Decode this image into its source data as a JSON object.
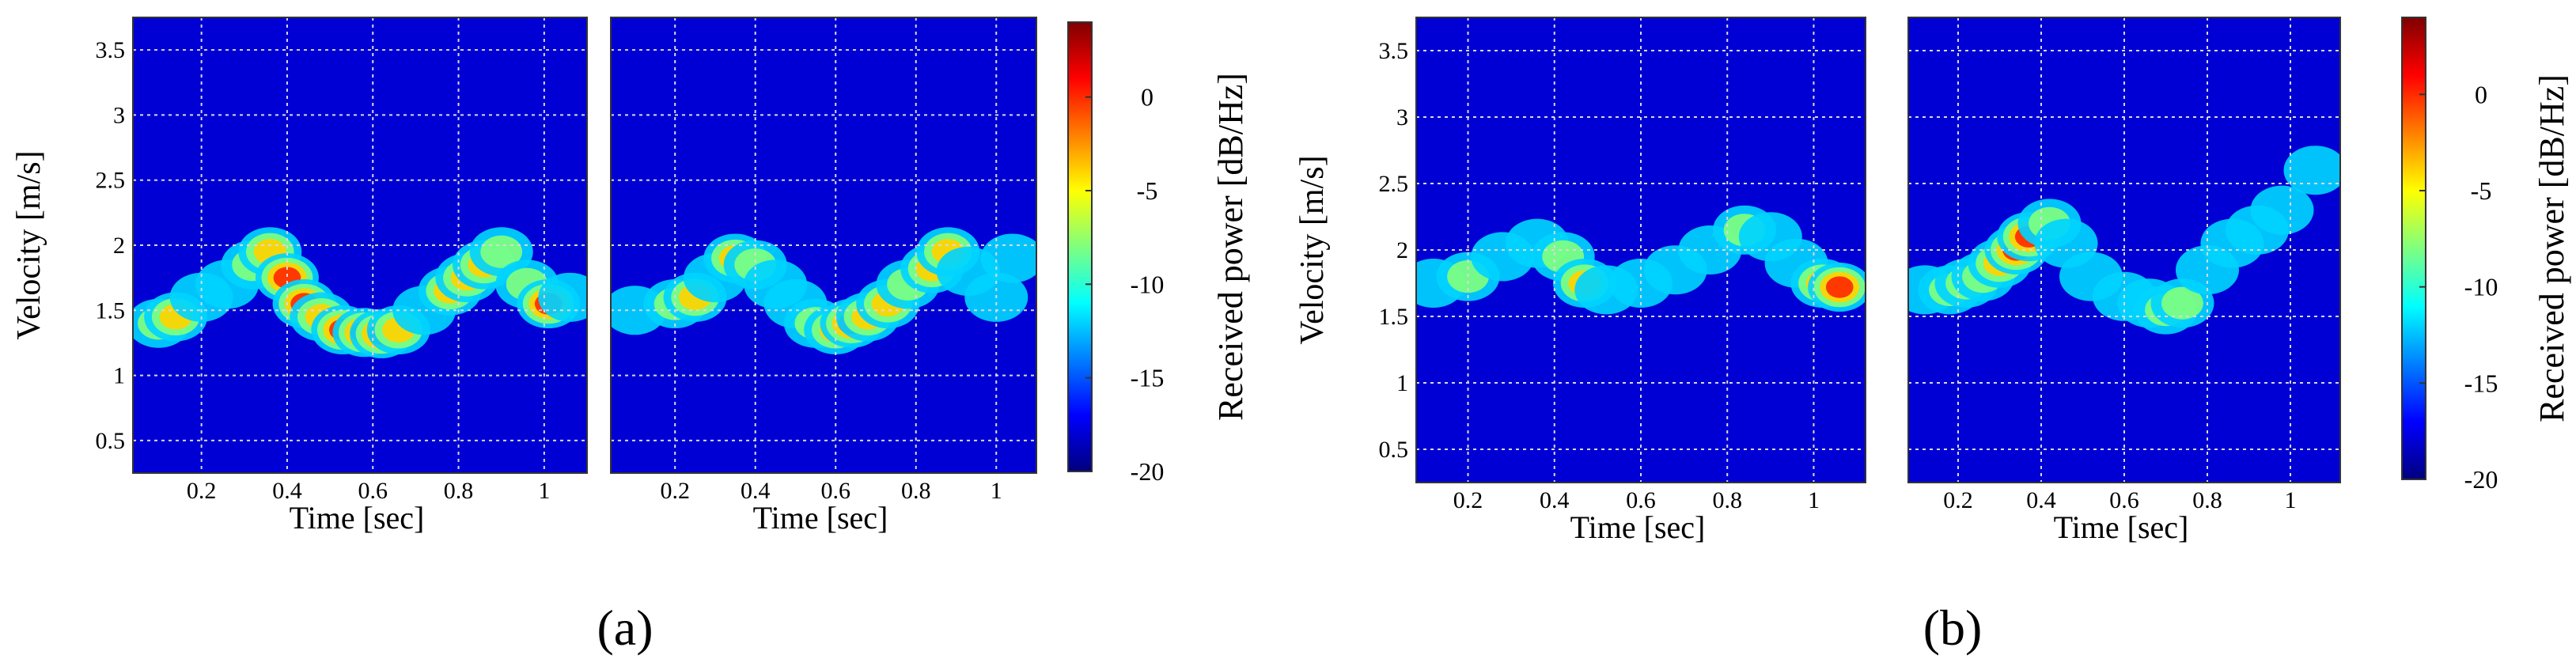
{
  "figure": {
    "panel_labels": [
      "(a)",
      "(b)"
    ]
  },
  "colorbar": {
    "label": "Received power [dB/Hz]",
    "ticks": [
      0,
      -5,
      -10,
      -15,
      -20
    ],
    "range": [
      -20,
      4
    ],
    "colormap": "jet",
    "colors": [
      "#00007f",
      "#0000ff",
      "#007fff",
      "#00ffff",
      "#7fff7f",
      "#ffff00",
      "#ff7f00",
      "#ff0000",
      "#7f0000"
    ]
  },
  "chart_data": [
    {
      "type": "heatmap",
      "group": "a",
      "xlabel": "Time [sec]",
      "ylabel": "Velocity [m/s]",
      "xticks": [
        0.2,
        0.4,
        0.6,
        0.8,
        1
      ],
      "yticks": [
        0.5,
        1,
        1.5,
        2,
        2.5,
        3,
        3.5
      ],
      "xlim": [
        0.04,
        1.1
      ],
      "ylim": [
        0.25,
        3.75
      ],
      "grid": true,
      "background_db": -18,
      "trace": [
        [
          0.1,
          1.4,
          -8
        ],
        [
          0.14,
          1.45,
          -4
        ],
        [
          0.2,
          1.6,
          -10
        ],
        [
          0.26,
          1.7,
          -10
        ],
        [
          0.32,
          1.85,
          -6
        ],
        [
          0.36,
          1.95,
          -2
        ],
        [
          0.4,
          1.75,
          1
        ],
        [
          0.44,
          1.55,
          0
        ],
        [
          0.48,
          1.45,
          -4
        ],
        [
          0.53,
          1.35,
          1
        ],
        [
          0.58,
          1.33,
          0
        ],
        [
          0.62,
          1.32,
          2
        ],
        [
          0.66,
          1.35,
          -2
        ],
        [
          0.72,
          1.5,
          -10
        ],
        [
          0.78,
          1.65,
          -2
        ],
        [
          0.82,
          1.75,
          -3
        ],
        [
          0.86,
          1.85,
          -4
        ],
        [
          0.9,
          1.95,
          -5
        ],
        [
          0.96,
          1.7,
          -8
        ],
        [
          1.01,
          1.55,
          1
        ],
        [
          1.06,
          1.6,
          -9
        ]
      ]
    },
    {
      "type": "heatmap",
      "group": "a",
      "xlabel": "Time [sec]",
      "ylabel": "",
      "xticks": [
        0.2,
        0.4,
        0.6,
        0.8,
        1
      ],
      "yticks": [
        0.5,
        1,
        1.5,
        2,
        2.5,
        3,
        3.5
      ],
      "xlim": [
        0.04,
        1.1
      ],
      "ylim": [
        0.25,
        3.75
      ],
      "grid": true,
      "background_db": -18,
      "trace": [
        [
          0.1,
          1.5,
          -12
        ],
        [
          0.2,
          1.55,
          -8
        ],
        [
          0.25,
          1.6,
          -4
        ],
        [
          0.3,
          1.75,
          -9
        ],
        [
          0.35,
          1.9,
          -4
        ],
        [
          0.4,
          1.85,
          -8
        ],
        [
          0.45,
          1.7,
          -10
        ],
        [
          0.5,
          1.55,
          -9
        ],
        [
          0.55,
          1.4,
          -6
        ],
        [
          0.6,
          1.35,
          -3
        ],
        [
          0.64,
          1.4,
          1
        ],
        [
          0.68,
          1.45,
          -1
        ],
        [
          0.73,
          1.55,
          -4
        ],
        [
          0.78,
          1.7,
          -6
        ],
        [
          0.84,
          1.82,
          -3
        ],
        [
          0.88,
          1.95,
          -1
        ],
        [
          0.93,
          1.8,
          -10
        ],
        [
          1.0,
          1.6,
          -12
        ],
        [
          1.04,
          1.9,
          -12
        ]
      ]
    },
    {
      "type": "heatmap",
      "group": "b",
      "xlabel": "Time [sec]",
      "ylabel": "Velocity [m/s]",
      "xticks": [
        0.2,
        0.4,
        0.6,
        0.8,
        1
      ],
      "yticks": [
        0.5,
        1,
        1.5,
        2,
        2.5,
        3,
        3.5
      ],
      "xlim": [
        0.08,
        1.12
      ],
      "ylim": [
        0.25,
        3.75
      ],
      "grid": true,
      "background_db": -18,
      "trace": [
        [
          0.12,
          1.75,
          -10
        ],
        [
          0.2,
          1.8,
          -8
        ],
        [
          0.28,
          1.95,
          -10
        ],
        [
          0.36,
          2.05,
          -9
        ],
        [
          0.42,
          1.95,
          -6
        ],
        [
          0.47,
          1.75,
          -2
        ],
        [
          0.52,
          1.7,
          -10
        ],
        [
          0.6,
          1.75,
          -12
        ],
        [
          0.68,
          1.85,
          -10
        ],
        [
          0.76,
          2.0,
          -9
        ],
        [
          0.84,
          2.15,
          -8
        ],
        [
          0.9,
          2.1,
          -9
        ],
        [
          0.96,
          1.9,
          -10
        ],
        [
          1.02,
          1.75,
          -4
        ],
        [
          1.06,
          1.72,
          0
        ]
      ]
    },
    {
      "type": "heatmap",
      "group": "b",
      "xlabel": "Time [sec]",
      "ylabel": "",
      "xticks": [
        0.2,
        0.4,
        0.6,
        0.8,
        1
      ],
      "yticks": [
        0.5,
        1,
        1.5,
        2,
        2.5,
        3,
        3.5
      ],
      "xlim": [
        0.08,
        1.12
      ],
      "ylim": [
        0.25,
        3.75
      ],
      "grid": true,
      "background_db": -18,
      "trace": [
        [
          0.12,
          1.7,
          -10
        ],
        [
          0.18,
          1.7,
          -6
        ],
        [
          0.22,
          1.75,
          -5
        ],
        [
          0.26,
          1.8,
          -6
        ],
        [
          0.3,
          1.9,
          -3
        ],
        [
          0.34,
          2.0,
          0
        ],
        [
          0.37,
          2.1,
          2
        ],
        [
          0.42,
          2.2,
          -8
        ],
        [
          0.46,
          2.05,
          -10
        ],
        [
          0.52,
          1.8,
          -11
        ],
        [
          0.6,
          1.65,
          -12
        ],
        [
          0.66,
          1.6,
          -9
        ],
        [
          0.7,
          1.55,
          -6
        ],
        [
          0.74,
          1.6,
          -8
        ],
        [
          0.8,
          1.85,
          -11
        ],
        [
          0.86,
          2.05,
          -9
        ],
        [
          0.92,
          2.15,
          -10
        ],
        [
          0.98,
          2.3,
          -11
        ],
        [
          1.06,
          2.6,
          -12
        ]
      ]
    }
  ]
}
